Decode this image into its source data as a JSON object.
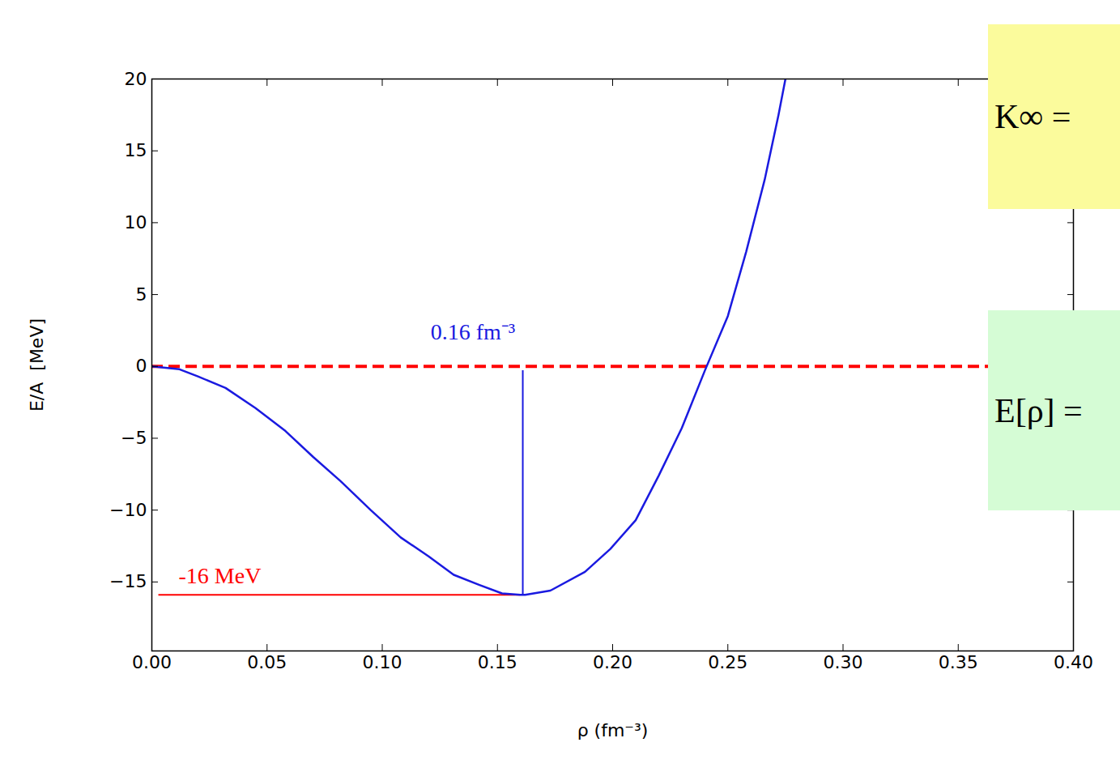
{
  "chart_data": {
    "type": "line",
    "x_label": "ρ (fm⁻³)",
    "y_label": "E/A  [MeV]",
    "x": [
      0,
      0.012,
      0.02,
      0.032,
      0.045,
      0.058,
      0.07,
      0.082,
      0.095,
      0.108,
      0.12,
      0.131,
      0.142,
      0.152,
      0.16,
      0.162,
      0.173,
      0.188,
      0.199,
      0.21,
      0.22,
      0.23,
      0.24,
      0.25,
      0.258,
      0.266,
      0.272,
      0.275
    ],
    "values": [
      0,
      -0.2,
      -0.7,
      -1.5,
      -2.9,
      -4.5,
      -6.3,
      -8.0,
      -10.0,
      -11.9,
      -13.2,
      -14.5,
      -15.2,
      -15.8,
      -15.9,
      -15.9,
      -15.6,
      -14.3,
      -12.7,
      -10.7,
      -7.6,
      -4.3,
      -0.3,
      3.5,
      8.0,
      13.0,
      17.5,
      20.0
    ],
    "color": "#1a1ae0",
    "xlim": [
      0,
      0.4
    ],
    "ylim": [
      -19.8,
      20
    ],
    "xticks": [
      {
        "value": 0,
        "label": "0.00"
      },
      {
        "value": 0.05,
        "label": "0.05"
      },
      {
        "value": 0.1,
        "label": "0.10"
      },
      {
        "value": 0.15,
        "label": "0.15"
      },
      {
        "value": 0.2,
        "label": "0.20"
      },
      {
        "value": 0.25,
        "label": "0.25"
      },
      {
        "value": 0.3,
        "label": "0.30"
      },
      {
        "value": 0.35,
        "label": "0.35"
      },
      {
        "value": 0.4,
        "label": "0.40"
      }
    ],
    "yticks": [
      {
        "value": -15,
        "label": "−15"
      },
      {
        "value": -10,
        "label": "−10"
      },
      {
        "value": -5,
        "label": "−5"
      },
      0,
      5,
      10,
      15,
      20
    ],
    "grid": false,
    "hlines": [
      {
        "y": 0,
        "color": "#ff0000",
        "line_style": "dashed"
      },
      {
        "y": -15.9,
        "x1": 0.003,
        "x2": 0.16,
        "color": "#ff0000",
        "line_style": "solid"
      }
    ],
    "vlines": [
      {
        "x": 0.161,
        "y1": -0.3,
        "y2": -15.9,
        "color": "#1a1ae0",
        "line_style": "solid"
      }
    ],
    "annotations": [
      {
        "text": "0.16 fm⁻³",
        "x": 0.121,
        "y": 2.4,
        "color": "#1a1ae0"
      },
      {
        "text": "-16 MeV",
        "x": 0.0116,
        "y": -14.6,
        "color": "#ff0000"
      }
    ],
    "boxes": [
      {
        "text": "K∞ =",
        "color": "#fbfb9c"
      },
      {
        "text": "E[ρ] =",
        "color": "#d5fcd5"
      }
    ]
  }
}
